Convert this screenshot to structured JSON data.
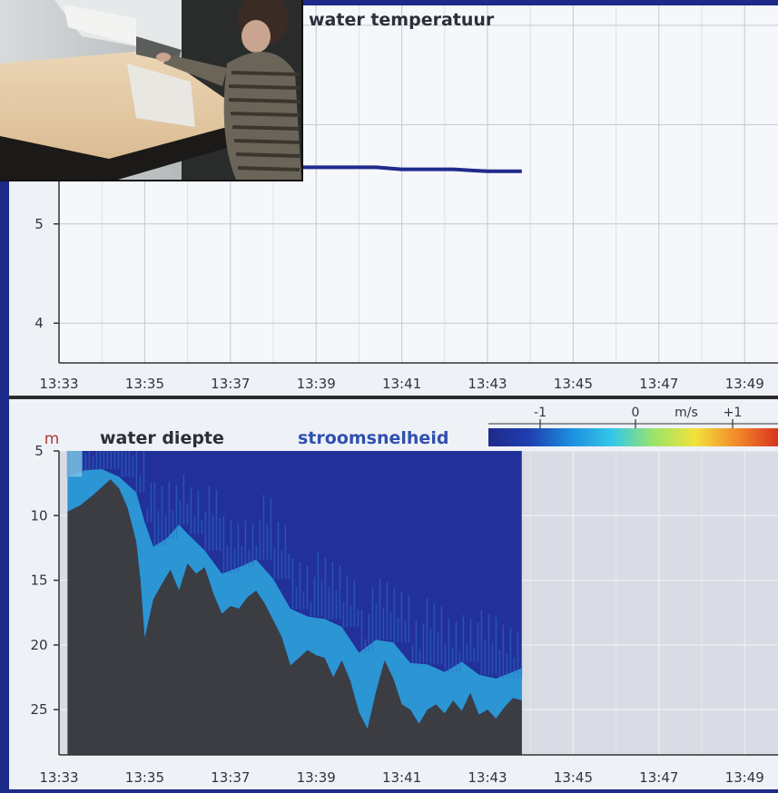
{
  "chart_data": [
    {
      "type": "line",
      "title": "water temperatuur",
      "x_ticks": [
        "13:33",
        "13:35",
        "13:37",
        "13:39",
        "13:41",
        "13:43",
        "13:45",
        "13:47",
        "13:49"
      ],
      "y_ticks": [
        4,
        5
      ],
      "ylim": [
        3.6,
        7.2
      ],
      "grid": true,
      "series": [
        {
          "color": "#1f2a8c",
          "points": [
            [
              "13:33.2",
              5.6
            ],
            [
              "13:33.6",
              5.59
            ],
            [
              "13:34.0",
              5.58
            ],
            [
              "13:34.3",
              5.6
            ],
            [
              "13:34.6",
              5.63
            ],
            [
              "13:34.9",
              5.62
            ],
            [
              "13:35.2",
              5.64
            ],
            [
              "13:35.5",
              5.62
            ],
            [
              "13:35.8",
              5.61
            ],
            [
              "13:36.1",
              5.6
            ],
            [
              "13:36.4",
              5.57
            ],
            [
              "13:36.6",
              5.54
            ],
            [
              "13:36.9",
              5.55
            ],
            [
              "13:37.4",
              5.57
            ],
            [
              "13:38.0",
              5.57
            ],
            [
              "13:38.6",
              5.57
            ],
            [
              "13:39.2",
              5.57
            ],
            [
              "13:39.8",
              5.57
            ],
            [
              "13:40.4",
              5.57
            ],
            [
              "13:41.0",
              5.55
            ],
            [
              "13:41.6",
              5.55
            ],
            [
              "13:42.2",
              5.55
            ],
            [
              "13:42.6",
              5.54
            ],
            [
              "13:43.0",
              5.53
            ],
            [
              "13:43.4",
              5.53
            ],
            [
              "13:43.8",
              5.53
            ]
          ]
        }
      ]
    },
    {
      "type": "heatmap",
      "ylabel": "m",
      "labels": [
        "water diepte",
        "stroomsnelheid"
      ],
      "x_ticks": [
        "13:33",
        "13:35",
        "13:37",
        "13:39",
        "13:41",
        "13:43",
        "13:45",
        "13:47",
        "13:49"
      ],
      "y_ticks": [
        5,
        10,
        15,
        20,
        25
      ],
      "ylim": [
        5,
        28.5
      ],
      "y_inverted": true,
      "grid": true,
      "colorbar": {
        "ticks": [
          "-1",
          "0",
          "m/s",
          "+1"
        ],
        "colors": [
          "#1e2a8a",
          "#1f3fb0",
          "#1b8fe0",
          "#34c8e8",
          "#9be36a",
          "#f2e23a",
          "#f28a2a",
          "#d9341e"
        ]
      },
      "colors": {
        "bottom": "#3b3d42",
        "water": "#22309a",
        "flow": "#2ea7de",
        "surface": "#7ec8e6"
      },
      "data_end": "13:43.8",
      "bottom_depth": [
        [
          "13:33.2",
          9.7
        ],
        [
          "13:33.5",
          9.2
        ],
        [
          "13:33.8",
          8.4
        ],
        [
          "13:34.0",
          7.8
        ],
        [
          "13:34.2",
          7.2
        ],
        [
          "13:34.4",
          7.9
        ],
        [
          "13:34.6",
          9.4
        ],
        [
          "13:34.8",
          12.0
        ],
        [
          "13:34.9",
          15.0
        ],
        [
          "13:35.0",
          19.5
        ],
        [
          "13:35.2",
          16.5
        ],
        [
          "13:35.4",
          15.3
        ],
        [
          "13:35.6",
          14.2
        ],
        [
          "13:35.8",
          15.8
        ],
        [
          "13:36.0",
          13.7
        ],
        [
          "13:36.2",
          14.5
        ],
        [
          "13:36.4",
          14.0
        ],
        [
          "13:36.6",
          16.0
        ],
        [
          "13:36.8",
          17.6
        ],
        [
          "13:37.0",
          17.0
        ],
        [
          "13:37.2",
          17.2
        ],
        [
          "13:37.4",
          16.3
        ],
        [
          "13:37.6",
          15.8
        ],
        [
          "13:37.8",
          16.8
        ],
        [
          "13:38.0",
          18.1
        ],
        [
          "13:38.2",
          19.4
        ],
        [
          "13:38.4",
          21.6
        ],
        [
          "13:38.6",
          21.0
        ],
        [
          "13:38.8",
          20.4
        ],
        [
          "13:39.0",
          20.8
        ],
        [
          "13:39.2",
          21.0
        ],
        [
          "13:39.4",
          22.5
        ],
        [
          "13:39.6",
          21.2
        ],
        [
          "13:39.8",
          22.8
        ],
        [
          "13:40.0",
          25.2
        ],
        [
          "13:40.2",
          26.5
        ],
        [
          "13:40.4",
          23.6
        ],
        [
          "13:40.6",
          21.2
        ],
        [
          "13:40.8",
          22.6
        ],
        [
          "13:41.0",
          24.6
        ],
        [
          "13:41.2",
          25.0
        ],
        [
          "13:41.4",
          26.1
        ],
        [
          "13:41.6",
          25.0
        ],
        [
          "13:41.8",
          24.6
        ],
        [
          "13:42.0",
          25.3
        ],
        [
          "13:42.2",
          24.3
        ],
        [
          "13:42.4",
          25.1
        ],
        [
          "13:42.6",
          23.7
        ],
        [
          "13:42.8",
          25.4
        ],
        [
          "13:43.0",
          25.0
        ],
        [
          "13:43.2",
          25.7
        ],
        [
          "13:43.4",
          24.8
        ],
        [
          "13:43.6",
          24.1
        ],
        [
          "13:43.8",
          24.3
        ]
      ],
      "flow_depth": [
        [
          "13:33.2",
          7.0
        ],
        [
          "13:33.6",
          6.5
        ],
        [
          "13:34.0",
          6.4
        ],
        [
          "13:34.4",
          7.0
        ],
        [
          "13:34.8",
          8.2
        ],
        [
          "13:35.0",
          10.5
        ],
        [
          "13:35.2",
          12.4
        ],
        [
          "13:35.5",
          11.8
        ],
        [
          "13:35.8",
          10.7
        ],
        [
          "13:36.0",
          11.4
        ],
        [
          "13:36.4",
          12.7
        ],
        [
          "13:36.8",
          14.5
        ],
        [
          "13:37.2",
          14.0
        ],
        [
          "13:37.6",
          13.4
        ],
        [
          "13:38.0",
          14.9
        ],
        [
          "13:38.4",
          17.2
        ],
        [
          "13:38.8",
          17.8
        ],
        [
          "13:39.2",
          18.0
        ],
        [
          "13:39.6",
          18.6
        ],
        [
          "13:40.0",
          20.6
        ],
        [
          "13:40.4",
          19.6
        ],
        [
          "13:40.8",
          19.8
        ],
        [
          "13:41.2",
          21.4
        ],
        [
          "13:41.6",
          21.5
        ],
        [
          "13:42.0",
          22.1
        ],
        [
          "13:42.4",
          21.3
        ],
        [
          "13:42.8",
          22.3
        ],
        [
          "13:43.2",
          22.6
        ],
        [
          "13:43.8",
          21.8
        ]
      ]
    }
  ],
  "photo": {
    "description_colors": {
      "desk": "#e3c9a6",
      "wall": "#cfd3d4",
      "floor": "#2b2a28",
      "shirt": "#6a6458"
    }
  }
}
